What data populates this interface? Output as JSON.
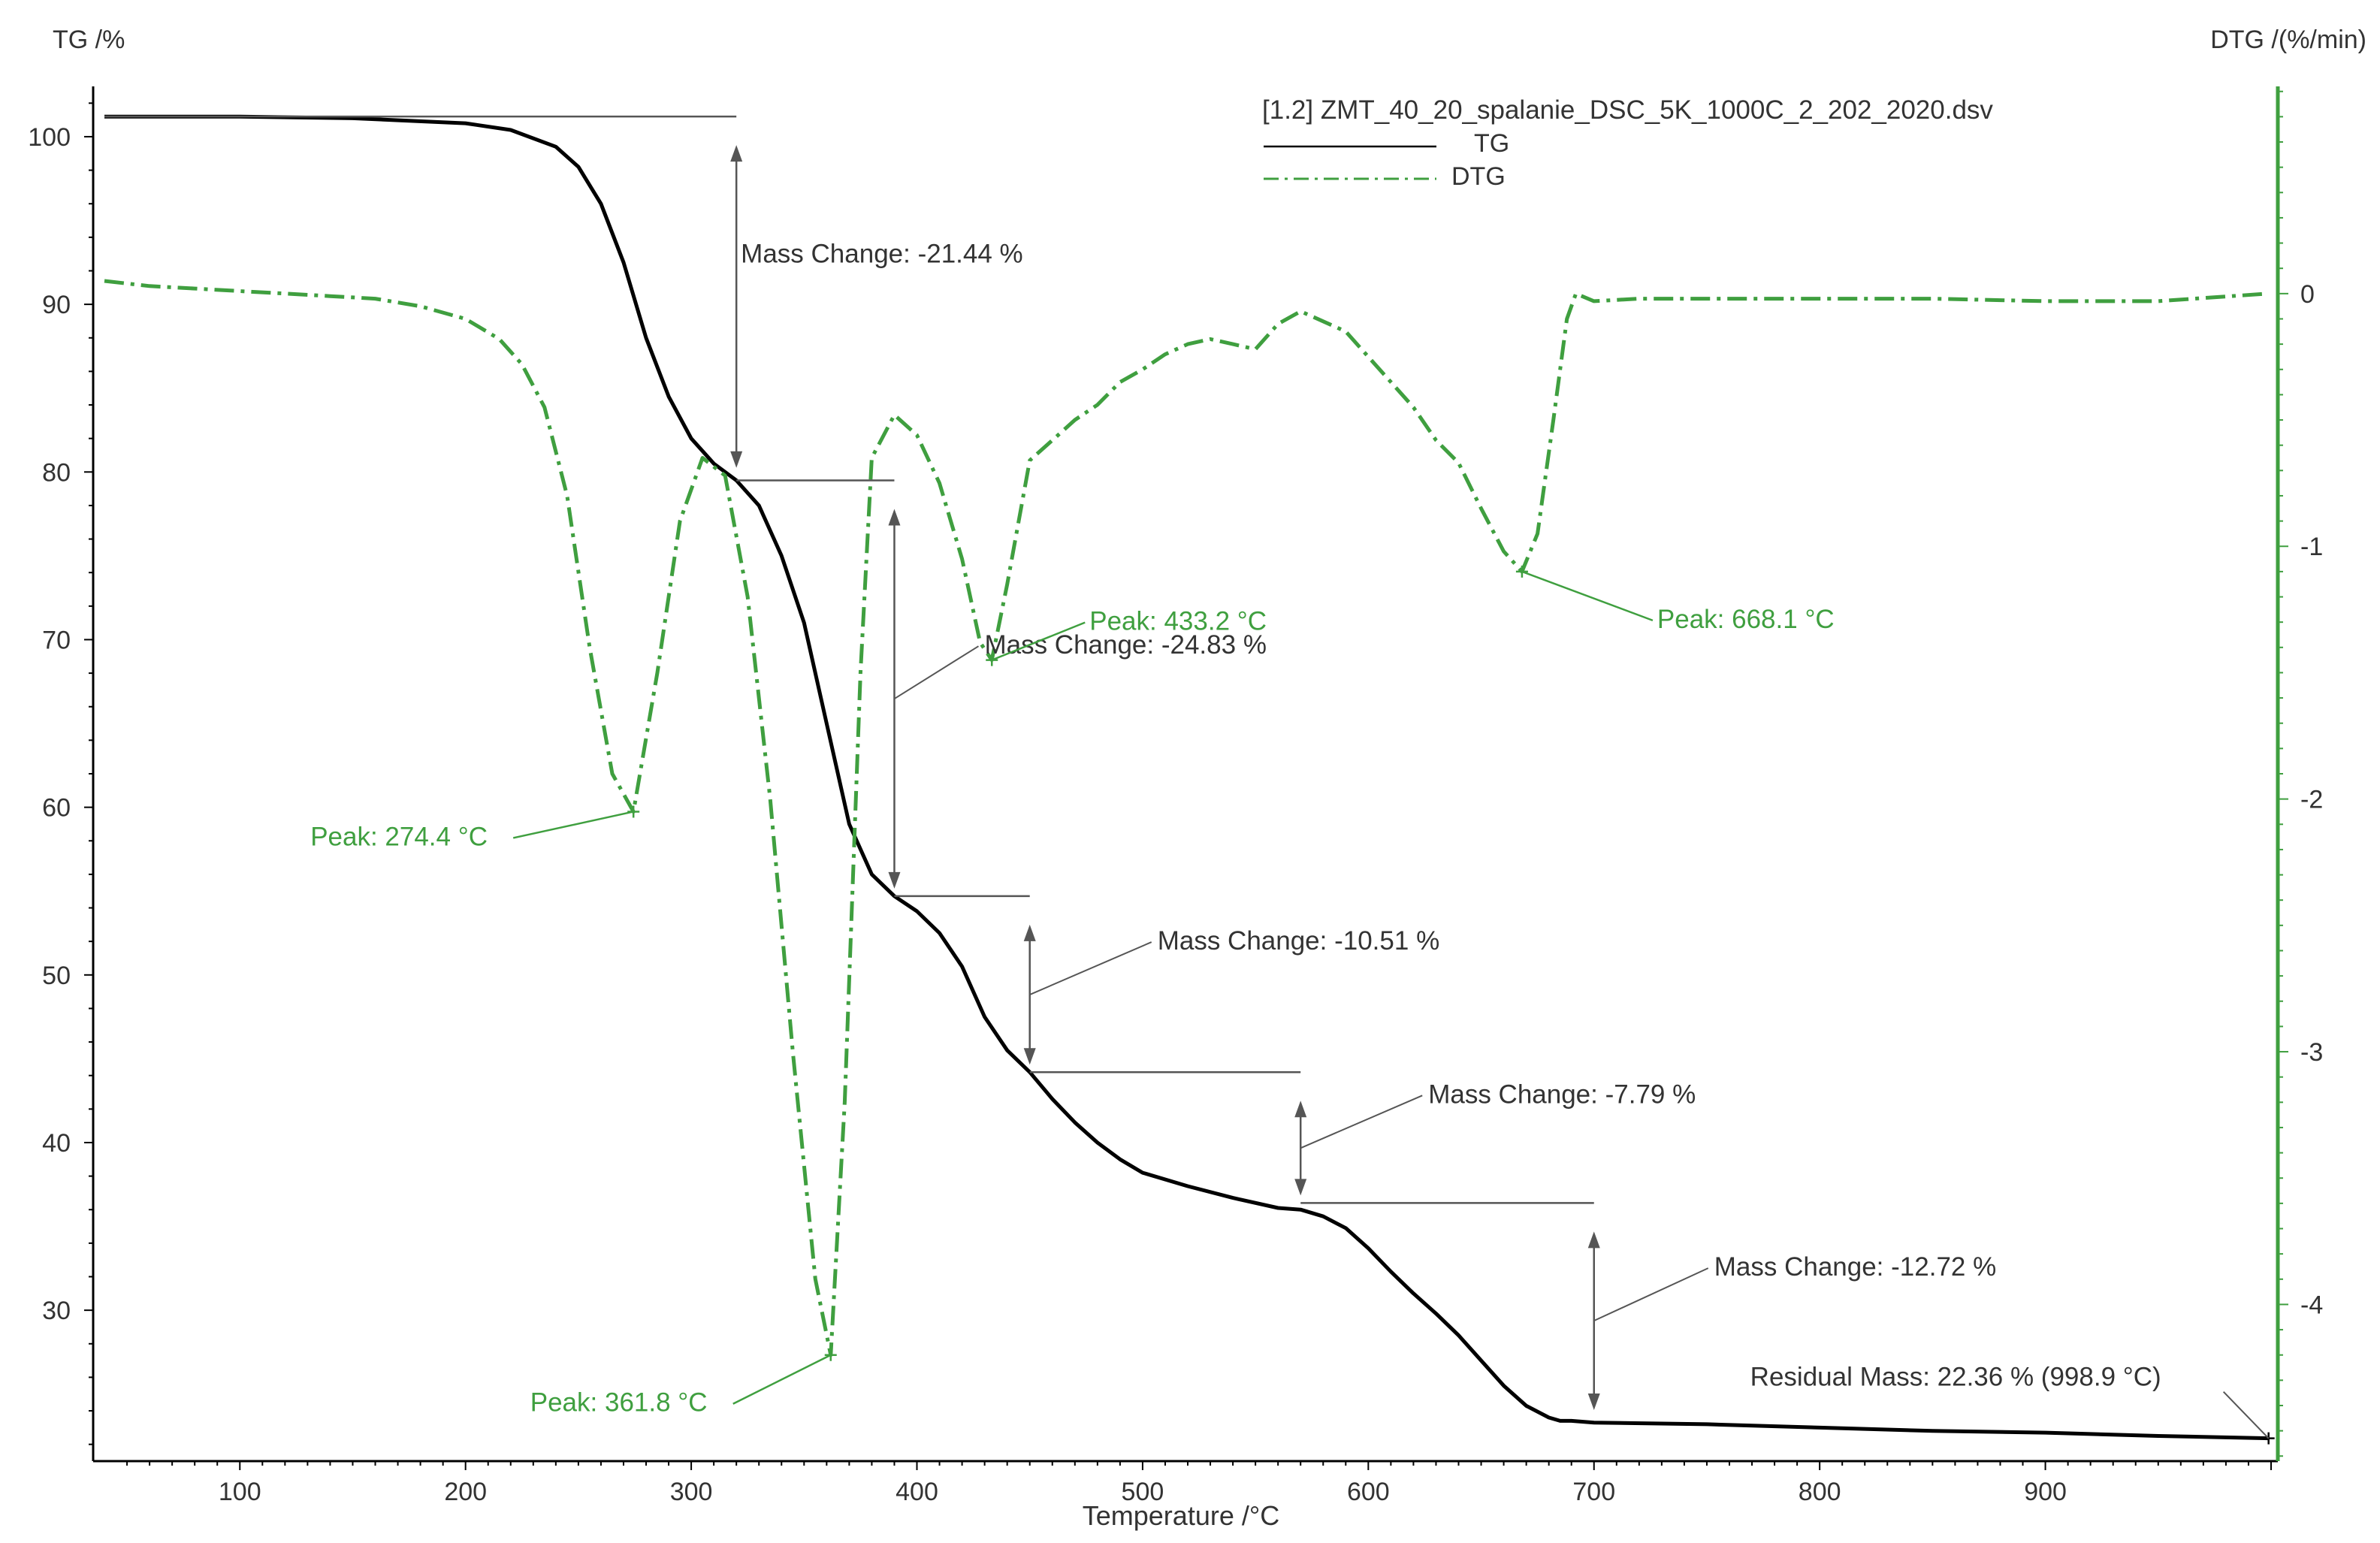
{
  "chart_data": {
    "type": "line",
    "title": "",
    "xlabel": "Temperature /°C",
    "ylabel_left": "TG /%",
    "ylabel_right": "DTG /(%/min)",
    "xlim": [
      35,
      1003
    ],
    "ylim_left": [
      21,
      103
    ],
    "ylim_right": [
      -4.62,
      0.82
    ],
    "x_ticks": [
      100,
      200,
      300,
      400,
      500,
      600,
      700,
      800,
      900
    ],
    "y_ticks_left": [
      30,
      40,
      50,
      60,
      70,
      80,
      90,
      100
    ],
    "y_ticks_right": [
      -4,
      -3,
      -2,
      -1,
      0
    ],
    "grid": false,
    "legend": {
      "position": "top-right",
      "file": "[1.2] ZMT_40_20_spalanie_DSC_5K_1000C_2_202_2020.dsv",
      "entries": [
        "TG",
        "DTG"
      ]
    },
    "colors": {
      "tg": "#000000",
      "dtg": "#3f9f3f",
      "annotation": "#555555"
    },
    "series": [
      {
        "name": "TG",
        "axis": "left",
        "x": [
          40,
          100,
          150,
          200,
          220,
          240,
          250,
          260,
          270,
          280,
          290,
          300,
          310,
          320,
          330,
          340,
          350,
          360,
          370,
          380,
          390,
          400,
          410,
          420,
          430,
          440,
          450,
          460,
          470,
          480,
          490,
          500,
          520,
          540,
          560,
          570,
          580,
          590,
          600,
          610,
          620,
          630,
          640,
          650,
          660,
          670,
          680,
          685,
          690,
          700,
          750,
          800,
          850,
          900,
          950,
          998.9
        ],
        "y": [
          101.2,
          101.2,
          101.1,
          100.8,
          100.4,
          99.4,
          98.2,
          96.0,
          92.5,
          88.0,
          84.5,
          82.0,
          80.5,
          79.5,
          78.0,
          75.0,
          71.0,
          65.0,
          59.0,
          56.0,
          54.7,
          53.8,
          52.5,
          50.5,
          47.5,
          45.5,
          44.2,
          42.6,
          41.2,
          40.0,
          39.0,
          38.2,
          37.4,
          36.7,
          36.1,
          36.0,
          35.6,
          34.9,
          33.7,
          32.3,
          31.0,
          29.8,
          28.5,
          27.0,
          25.5,
          24.3,
          23.6,
          23.4,
          23.4,
          23.3,
          23.2,
          23.0,
          22.8,
          22.7,
          22.5,
          22.36
        ]
      },
      {
        "name": "DTG",
        "axis": "right",
        "x": [
          40,
          60,
          80,
          100,
          120,
          140,
          160,
          180,
          200,
          215,
          225,
          235,
          245,
          255,
          265,
          274.4,
          285,
          295,
          305,
          315,
          325,
          335,
          345,
          355,
          361.8,
          368,
          375,
          380,
          390,
          400,
          410,
          420,
          428,
          433.2,
          440,
          450,
          460,
          470,
          480,
          490,
          500,
          510,
          520,
          530,
          540,
          550,
          560,
          570,
          580,
          590,
          600,
          610,
          620,
          630,
          640,
          650,
          660,
          668.1,
          675,
          682,
          688,
          692,
          700,
          720,
          760,
          800,
          850,
          900,
          950,
          998.9
        ],
        "y": [
          0.05,
          0.03,
          0.02,
          0.01,
          0.0,
          -0.01,
          -0.02,
          -0.05,
          -0.1,
          -0.18,
          -0.28,
          -0.45,
          -0.8,
          -1.4,
          -1.9,
          -2.05,
          -1.5,
          -0.9,
          -0.65,
          -0.72,
          -1.2,
          -2.0,
          -3.0,
          -3.9,
          -4.2,
          -3.2,
          -1.5,
          -0.65,
          -0.48,
          -0.56,
          -0.75,
          -1.05,
          -1.38,
          -1.45,
          -1.15,
          -0.66,
          -0.58,
          -0.5,
          -0.44,
          -0.35,
          -0.3,
          -0.24,
          -0.2,
          -0.18,
          -0.2,
          -0.22,
          -0.12,
          -0.07,
          -0.11,
          -0.15,
          -0.25,
          -0.35,
          -0.45,
          -0.58,
          -0.67,
          -0.85,
          -1.02,
          -1.1,
          -0.95,
          -0.5,
          -0.1,
          0.0,
          -0.03,
          -0.02,
          -0.02,
          -0.02,
          -0.02,
          -0.03,
          -0.03,
          0.0
        ]
      }
    ],
    "annotations": {
      "mass_changes": [
        {
          "label": "Mass Change: -21.44 %",
          "t_start": 40,
          "t_end": 320,
          "upper": 101.2,
          "lower": 79.8
        },
        {
          "label": "Mass Change: -24.83 %",
          "t_start": 320,
          "t_end": 390,
          "upper": 79.5,
          "lower": 54.7
        },
        {
          "label": "Mass Change: -10.51 %",
          "t_start": 390,
          "t_end": 450,
          "upper": 54.7,
          "lower": 44.2
        },
        {
          "label": "Mass Change: -7.79 %",
          "t_start": 450,
          "t_end": 570,
          "upper": 44.2,
          "lower": 36.4
        },
        {
          "label": "Mass Change: -12.72 %",
          "t_start": 570,
          "t_end": 700,
          "upper": 36.4,
          "lower": 23.6
        }
      ],
      "peaks": [
        {
          "label": "Peak: 274.4 °C",
          "t": 274.4,
          "dtg": -2.05
        },
        {
          "label": "Peak: 361.8 °C",
          "t": 361.8,
          "dtg": -4.2
        },
        {
          "label": "Peak: 433.2 °C",
          "t": 433.2,
          "dtg": -1.45
        },
        {
          "label": "Peak: 668.1 °C",
          "t": 668.1,
          "dtg": -1.1
        }
      ],
      "residual": {
        "label": "Residual Mass: 22.36 % (998.9 °C)",
        "t": 998.9,
        "mass": 22.36
      }
    }
  }
}
